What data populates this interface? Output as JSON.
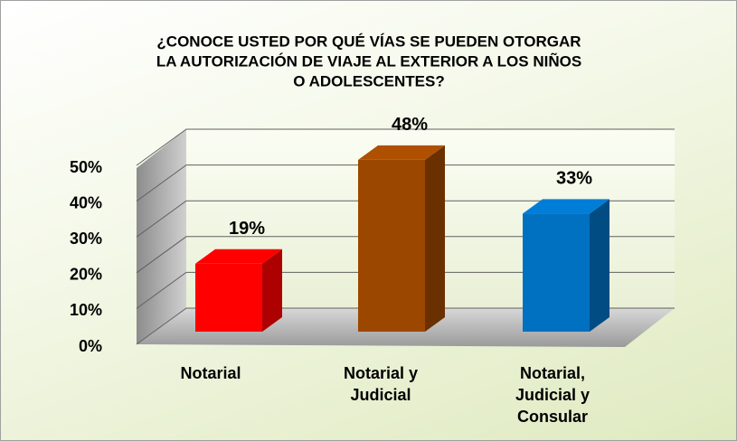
{
  "chart_data": {
    "type": "bar3d",
    "title": [
      "¿CONOCE USTED POR QUÉ VÍAS  SE PUEDEN OTORGAR",
      "LA AUTORIZACIÓN DE VIAJE  AL EXTERIOR A LOS NIÑOS",
      "O ADOLESCENTES?"
    ],
    "categories": [
      "Notarial",
      "Notarial y\nJudicial",
      "Notarial,\nJudicial y\nConsular"
    ],
    "values": [
      19,
      48,
      33
    ],
    "value_labels": [
      "19%",
      "48%",
      "33%"
    ],
    "colors": [
      "#ff0000",
      "#9c4700",
      "#0070c0"
    ],
    "ylim": [
      0,
      50
    ],
    "yticks": [
      {
        "value": 0,
        "label": "0%"
      },
      {
        "value": 10,
        "label": "10%"
      },
      {
        "value": 20,
        "label": "20%"
      },
      {
        "value": 30,
        "label": "30%"
      },
      {
        "value": 40,
        "label": "40%"
      },
      {
        "value": 50,
        "label": "50%"
      }
    ],
    "grid": true
  }
}
